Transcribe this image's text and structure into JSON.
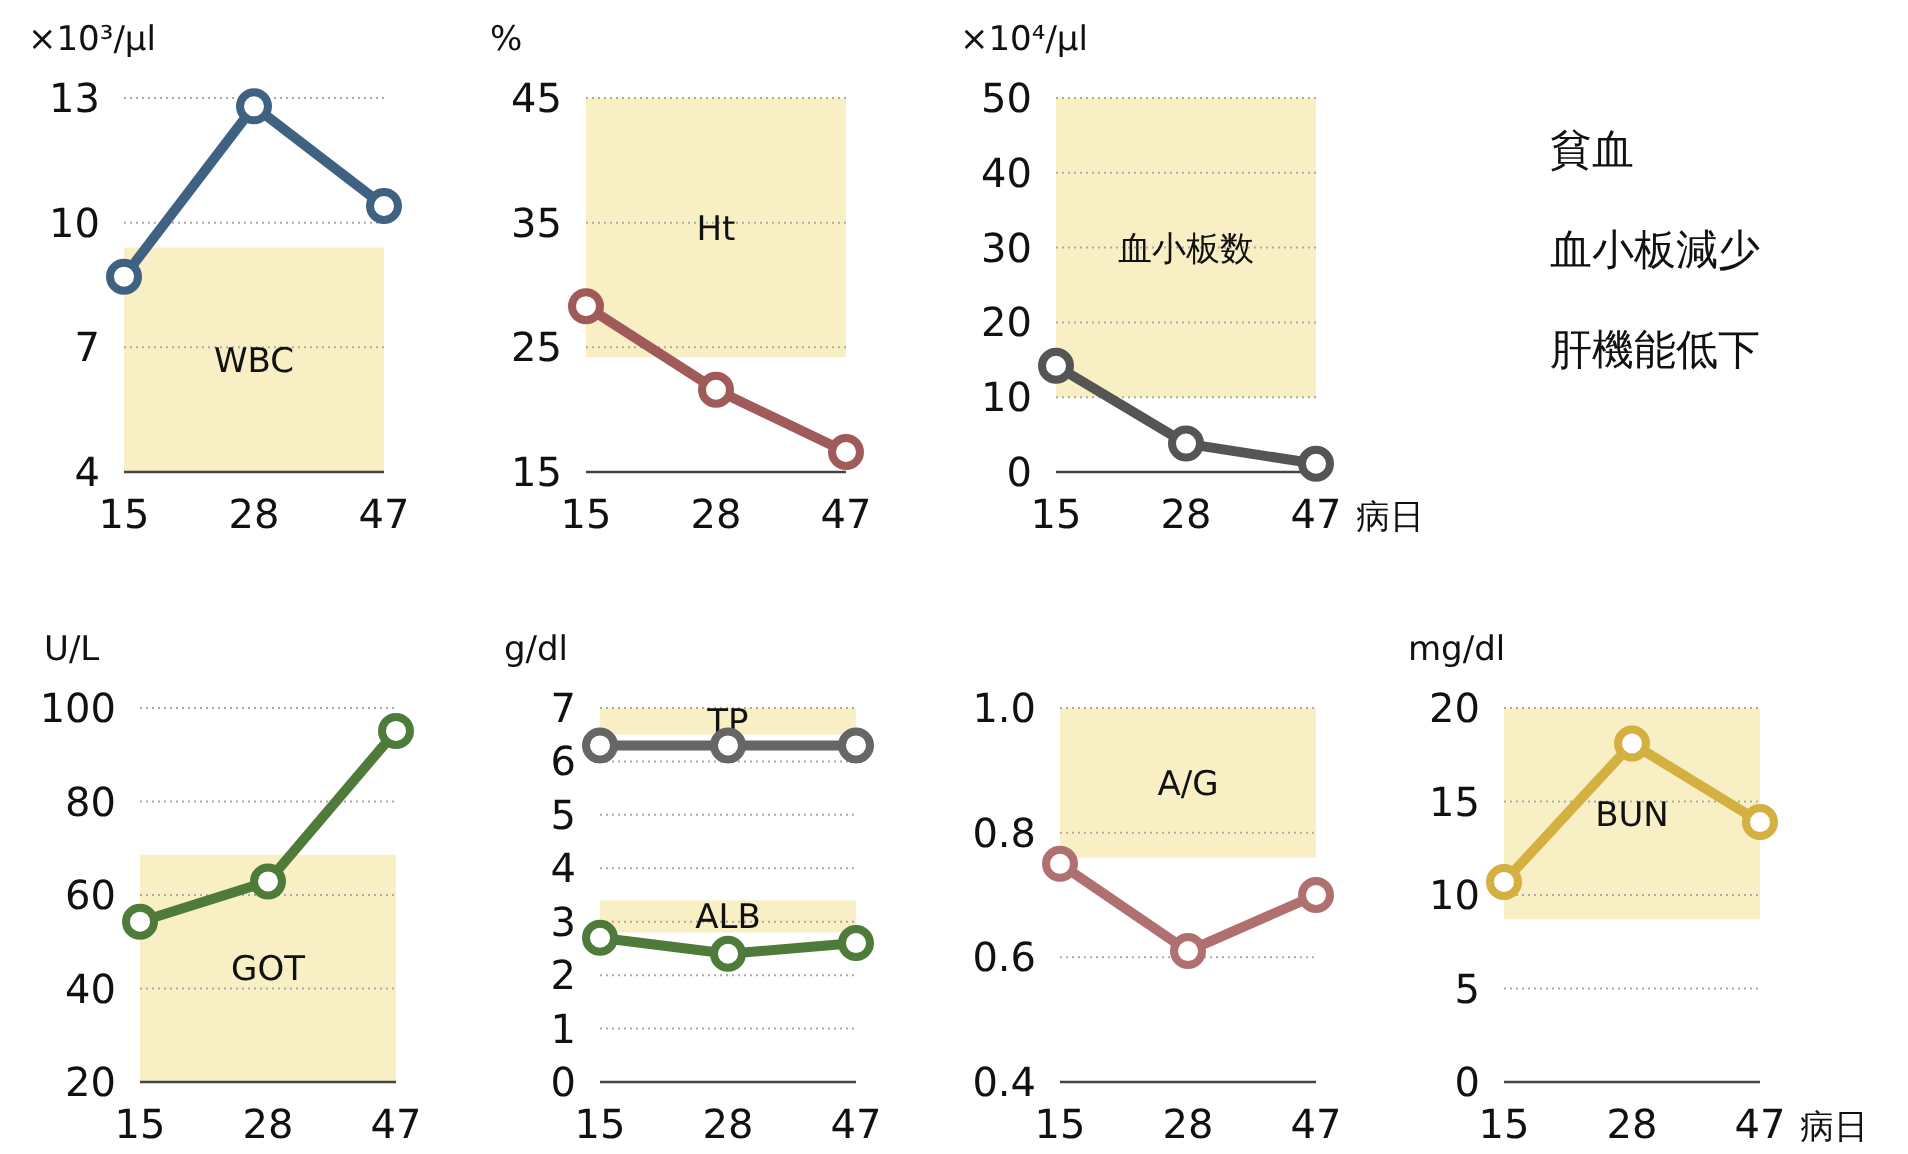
{
  "chart_data": [
    {
      "type": "line",
      "ylabel": "×10³/μl",
      "categories": [
        "15",
        "28",
        "47"
      ],
      "ylim": [
        4,
        13
      ],
      "yticks": [
        4,
        7,
        10,
        13
      ],
      "grid": "y",
      "marker": "circle",
      "series": [
        {
          "color": "#3f6283",
          "values": [
            8.7,
            12.8,
            10.4
          ]
        }
      ],
      "bands": [
        {
          "axis": "y",
          "from": 4,
          "to": 9.4,
          "label": "WBC",
          "color": "#f8f0c4"
        }
      ]
    },
    {
      "type": "line",
      "ylabel": "%",
      "categories": [
        "15",
        "28",
        "47"
      ],
      "ylim": [
        15,
        45
      ],
      "yticks": [
        15,
        25,
        35,
        45
      ],
      "grid": "y",
      "marker": "circle",
      "series": [
        {
          "color": "#a05a5a",
          "values": [
            28.3,
            21.6,
            16.6
          ]
        }
      ],
      "bands": [
        {
          "axis": "y",
          "from": 24.2,
          "to": 45,
          "label": "Ht",
          "color": "#f8f0c4"
        }
      ]
    },
    {
      "type": "line",
      "ylabel": "×10⁴/μl",
      "xlabel": "病日",
      "categories": [
        "15",
        "28",
        "47"
      ],
      "ylim": [
        0,
        50
      ],
      "yticks": [
        0,
        10,
        20,
        30,
        40,
        50
      ],
      "grid": "y",
      "marker": "circle",
      "series": [
        {
          "color": "#555555",
          "values": [
            14.2,
            3.8,
            1.1
          ]
        }
      ],
      "bands": [
        {
          "axis": "y",
          "from": 10,
          "to": 50,
          "label": "血小板数",
          "color": "#f8f0c4"
        }
      ]
    },
    {
      "type": "other",
      "annotations": [
        "貧血",
        "血小板減少",
        "肝機能低下"
      ]
    },
    {
      "type": "line",
      "ylabel": "U/L",
      "categories": [
        "15",
        "28",
        "47"
      ],
      "ylim": [
        20,
        100
      ],
      "yticks": [
        20,
        40,
        60,
        80,
        100
      ],
      "grid": "y",
      "marker": "circle",
      "series": [
        {
          "color": "#4e7a3a",
          "values": [
            54.3,
            62.9,
            95.1
          ]
        }
      ],
      "bands": [
        {
          "axis": "y",
          "from": 20,
          "to": 68.6,
          "label": "GOT",
          "color": "#f8f0c4"
        }
      ]
    },
    {
      "type": "line",
      "ylabel": "g/dl",
      "categories": [
        "15",
        "28",
        "47"
      ],
      "ylim": [
        0,
        7
      ],
      "yticks": [
        0,
        1,
        2,
        3,
        4,
        5,
        6,
        7
      ],
      "grid": "y",
      "marker": "circle",
      "series": [
        {
          "color": "#666666",
          "values": [
            6.3,
            6.3,
            6.3
          ]
        },
        {
          "color": "#4e7a3a",
          "values": [
            2.7,
            2.4,
            2.6
          ]
        }
      ],
      "bands": [
        {
          "axis": "y",
          "from": 6.5,
          "to": 7,
          "label": "TP",
          "color": "#f8f0c4"
        },
        {
          "axis": "y",
          "from": 2.8,
          "to": 3.4,
          "label": "ALB",
          "color": "#f8f0c4"
        }
      ]
    },
    {
      "type": "line",
      "categories": [
        "15",
        "28",
        "47"
      ],
      "ylim": [
        0.4,
        1
      ],
      "yticks": [
        0.4,
        0.6,
        0.8,
        {
          "value": 1,
          "label": "1.0"
        }
      ],
      "grid": "y",
      "marker": "circle",
      "series": [
        {
          "color": "#b07070",
          "values": [
            0.75,
            0.61,
            0.7
          ]
        }
      ],
      "bands": [
        {
          "axis": "y",
          "from": 0.76,
          "to": 1,
          "label": "A/G",
          "color": "#f8f0c4"
        }
      ]
    },
    {
      "type": "line",
      "ylabel": "mg/dl",
      "xlabel": "病日",
      "categories": [
        "15",
        "28",
        "47"
      ],
      "ylim": [
        0,
        20
      ],
      "yticks": [
        0,
        5,
        10,
        15,
        20
      ],
      "grid": "y",
      "marker": "circle",
      "series": [
        {
          "color": "#d4b040",
          "values": [
            10.7,
            18.1,
            13.9
          ]
        }
      ],
      "bands": [
        {
          "axis": "y",
          "from": 8.7,
          "to": 20,
          "label": "BUN",
          "color": "#f8f0c4"
        }
      ]
    }
  ]
}
